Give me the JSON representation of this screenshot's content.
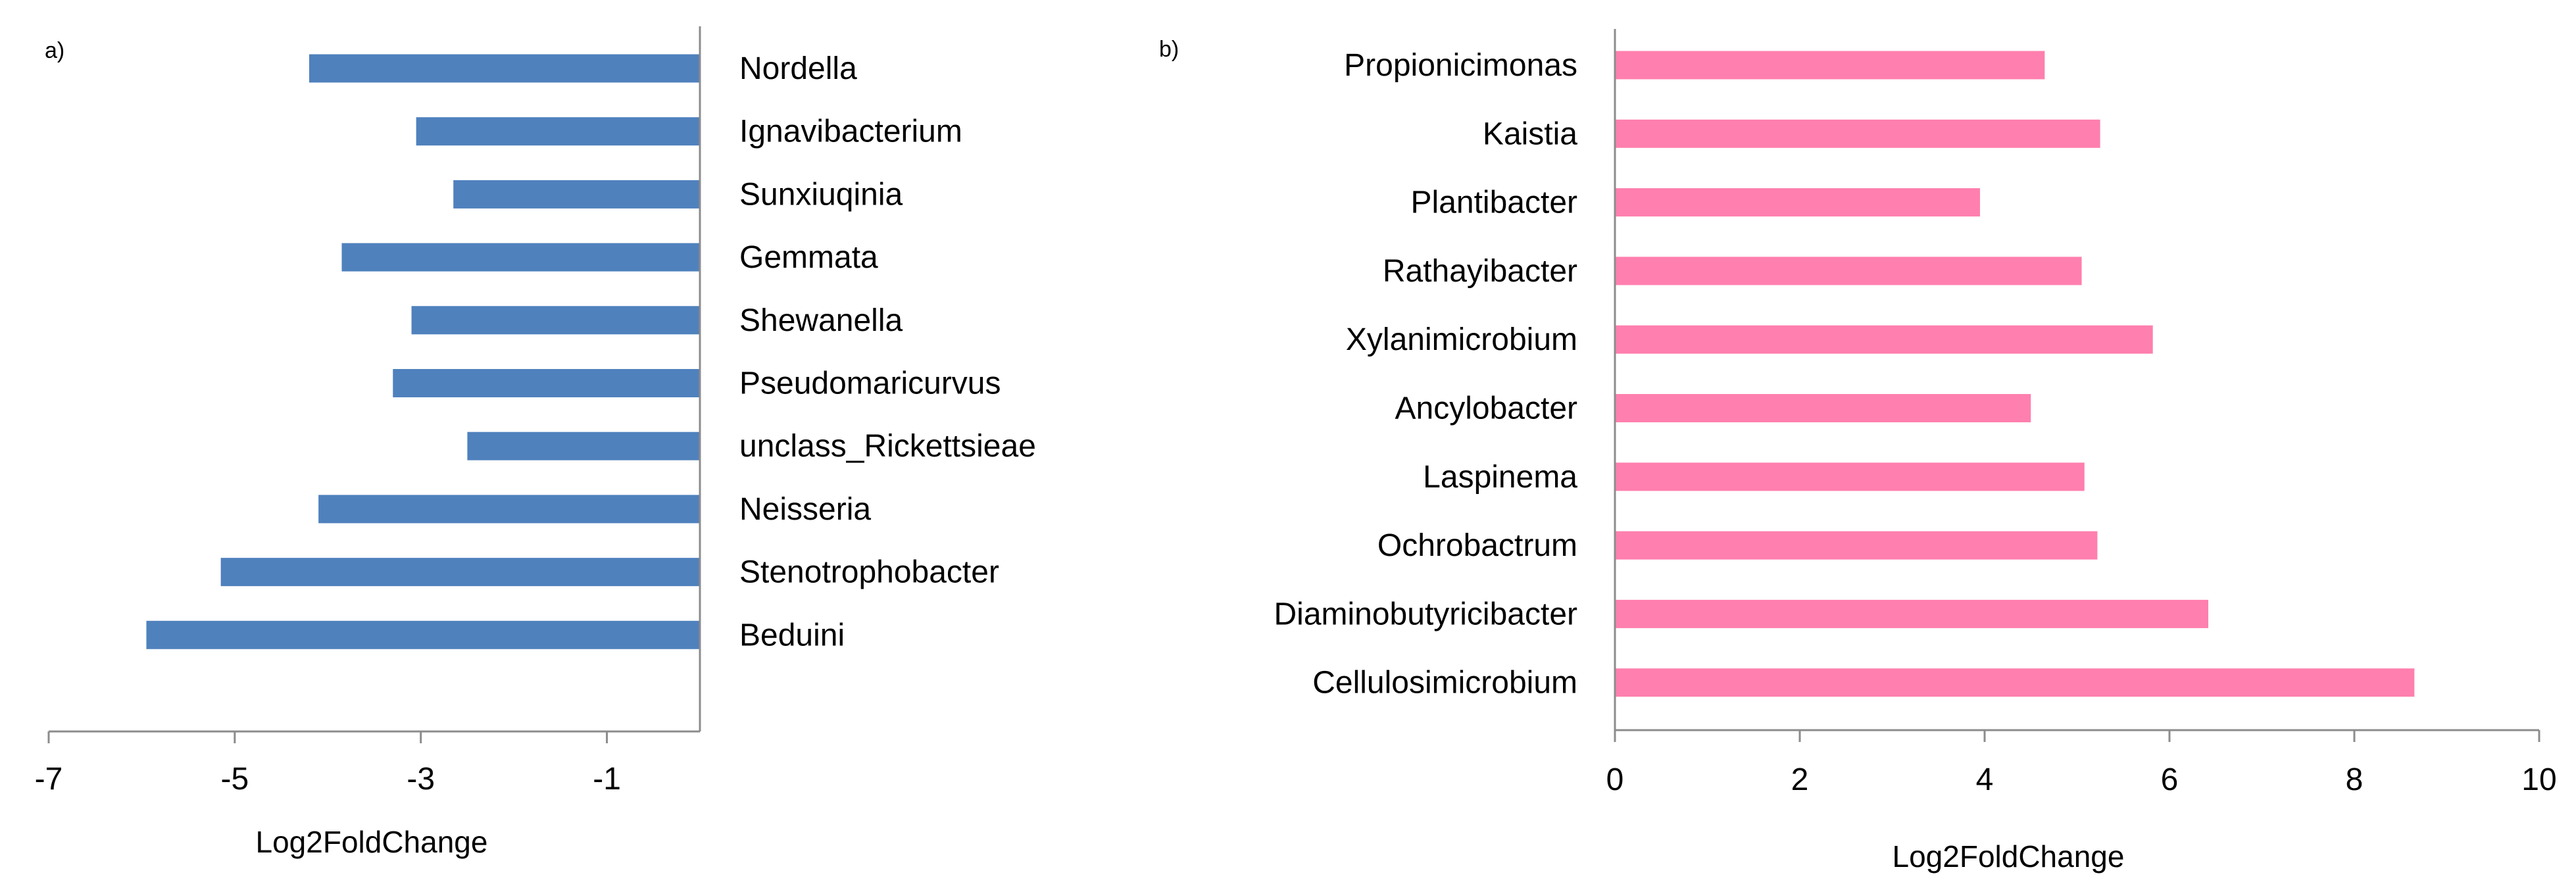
{
  "chart_data": [
    {
      "type": "bar",
      "orientation": "horizontal",
      "panel_label": "a)",
      "categories": [
        "Nordella",
        "Ignavibacterium",
        "Sunxiuqinia",
        "Gemmata",
        "Shewanella",
        "Pseudomaricurvus",
        "unclass_Rickettsieae",
        "Neisseria",
        "Stenotrophobacter",
        "Beduini"
      ],
      "values": [
        -4.2,
        -3.05,
        -2.65,
        -3.85,
        -3.1,
        -3.3,
        -2.5,
        -4.1,
        -5.15,
        -5.95
      ],
      "xlabel": "Log2FoldChange",
      "xlim": [
        -7,
        0
      ],
      "xticks": [
        -7,
        -5,
        -3,
        -1
      ],
      "xtick_labels": [
        "-7",
        "-5",
        "-3",
        "-1"
      ],
      "color": "#4f81bd",
      "category_labels_side": "right",
      "grid": false
    },
    {
      "type": "bar",
      "orientation": "horizontal",
      "panel_label": "b)",
      "categories": [
        "Propionicimonas",
        "Kaistia",
        "Plantibacter",
        "Rathayibacter",
        "Xylanimicrobium",
        "Ancylobacter",
        "Laspinema",
        "Ochrobactrum",
        "Diaminobutyricibacter",
        "Cellulosimicrobium"
      ],
      "values": [
        4.65,
        5.25,
        3.95,
        5.05,
        5.82,
        4.5,
        5.08,
        5.22,
        6.42,
        8.65
      ],
      "xlabel": "Log2FoldChange",
      "xlim": [
        0,
        10
      ],
      "xticks": [
        0,
        2,
        4,
        6,
        8,
        10
      ],
      "xtick_labels": [
        "0",
        "2",
        "4",
        "6",
        "8",
        "10"
      ],
      "color": "#ff7fae",
      "category_labels_side": "left",
      "grid": false
    }
  ]
}
